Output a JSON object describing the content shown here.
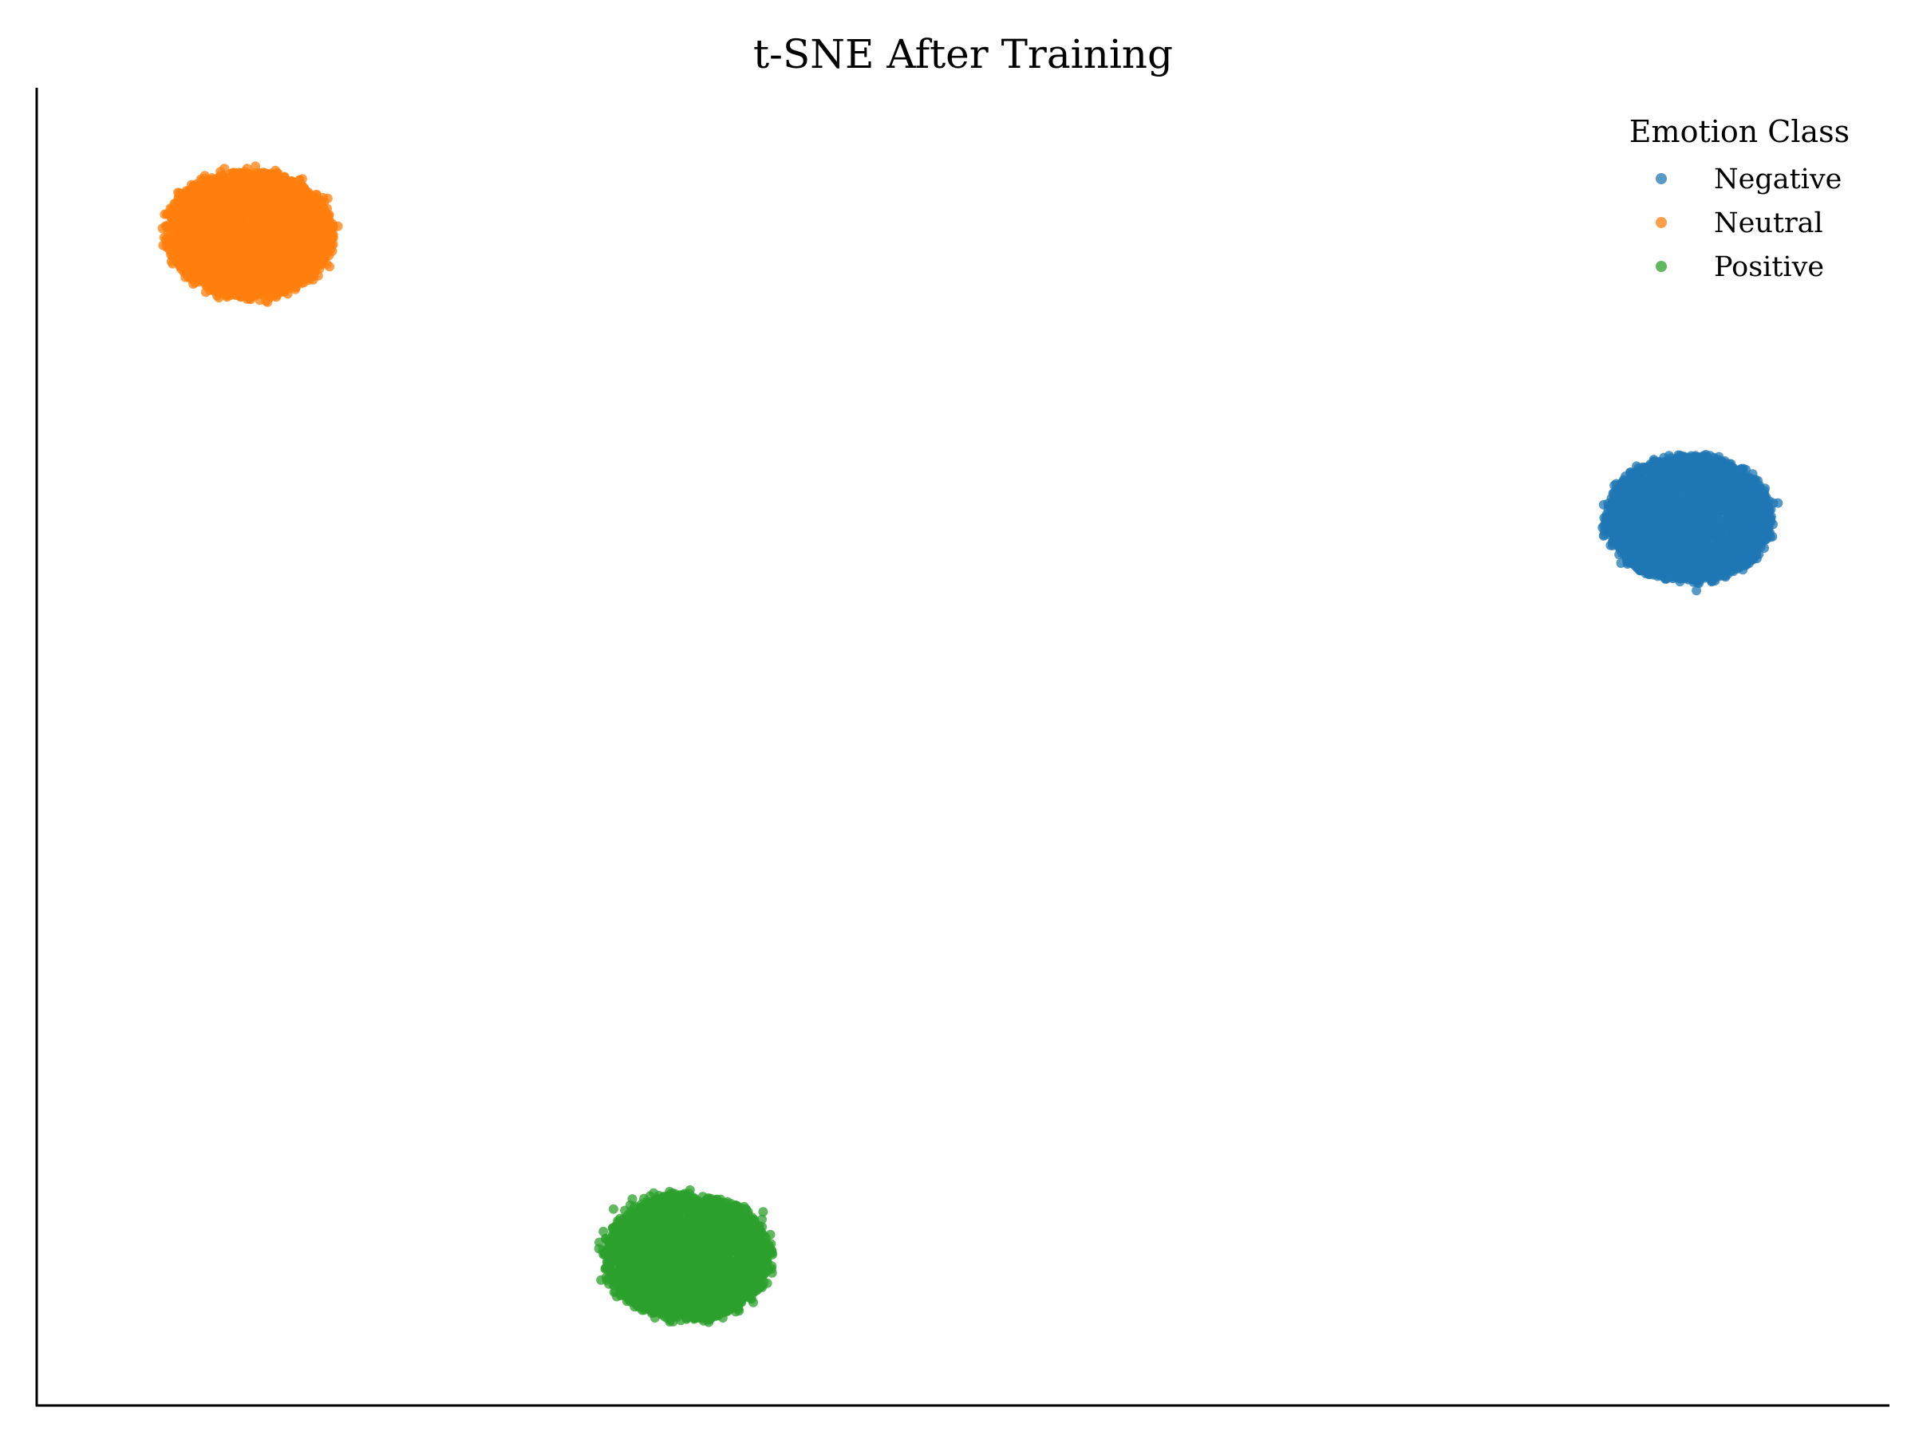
{
  "chart_data": {
    "type": "scatter",
    "title": "t-SNE After Training",
    "xlabel": "",
    "ylabel": "",
    "xlim": [
      0,
      100
    ],
    "ylim": [
      0,
      100
    ],
    "x_ticks_visible": false,
    "y_ticks_visible": false,
    "grid": false,
    "spines": [
      "left",
      "bottom"
    ],
    "legend": {
      "title": "Emotion Class",
      "placement": "top-right",
      "frame": false
    },
    "series": [
      {
        "name": "Negative",
        "color": "#1f77b4",
        "opacity": 0.75,
        "cluster_center": [
          89.2,
          67.3
        ],
        "cluster_spread": [
          4.3,
          4.6
        ],
        "points": 3000
      },
      {
        "name": "Neutral",
        "color": "#ff7f0e",
        "opacity": 0.75,
        "cluster_center": [
          11.5,
          88.9
        ],
        "cluster_spread": [
          4.3,
          4.6
        ],
        "points": 3000
      },
      {
        "name": "Positive",
        "color": "#2ca02c",
        "opacity": 0.75,
        "cluster_center": [
          35.1,
          11.3
        ],
        "cluster_spread": [
          4.3,
          4.6
        ],
        "points": 3000
      }
    ]
  }
}
